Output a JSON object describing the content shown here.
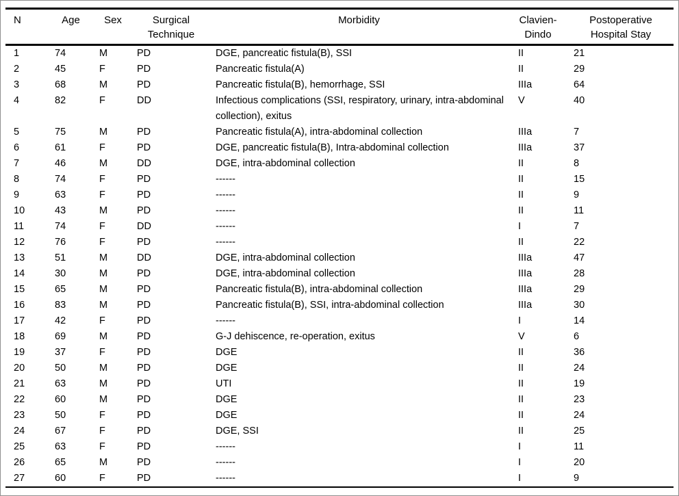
{
  "table": {
    "columns": [
      {
        "label": "N"
      },
      {
        "label": "Age"
      },
      {
        "label": "Sex"
      },
      {
        "label": "Surgical Technique"
      },
      {
        "label": "Morbidity"
      },
      {
        "label": "Clavien-Dindo"
      },
      {
        "label": "Postoperative Hospital Stay"
      }
    ],
    "rows": [
      [
        "1",
        "74",
        "M",
        "PD",
        "DGE, pancreatic fistula(B), SSI",
        "II",
        "21"
      ],
      [
        "2",
        "45",
        "F",
        "PD",
        "Pancreatic fistula(A)",
        "II",
        "29"
      ],
      [
        "3",
        "68",
        "M",
        "PD",
        "Pancreatic fistula(B), hemorrhage, SSI",
        "IIIa",
        "64"
      ],
      [
        "4",
        "82",
        "F",
        "DD",
        "Infectious complications (SSI, respiratory, urinary, intra-abdominal collection), exitus",
        "V",
        "40"
      ],
      [
        "5",
        "75",
        "M",
        "PD",
        "Pancreatic fistula(A), intra-abdominal collection",
        "IIIa",
        "7"
      ],
      [
        "6",
        "61",
        "F",
        "PD",
        "DGE, pancreatic fistula(B), Intra-abdominal collection",
        "IIIa",
        "37"
      ],
      [
        "7",
        "46",
        "M",
        "DD",
        "DGE, intra-abdominal collection",
        "II",
        "8"
      ],
      [
        "8",
        "74",
        "F",
        "PD",
        "------",
        "II",
        "15"
      ],
      [
        "9",
        "63",
        "F",
        "PD",
        "------",
        "II",
        "9"
      ],
      [
        "10",
        "43",
        "M",
        "PD",
        "------",
        "II",
        "11"
      ],
      [
        "11",
        "74",
        "F",
        "DD",
        "------",
        "I",
        "7"
      ],
      [
        "12",
        "76",
        "F",
        "PD",
        "------",
        "II",
        "22"
      ],
      [
        "13",
        "51",
        "M",
        "DD",
        "DGE, intra-abdominal collection",
        "IIIa",
        "47"
      ],
      [
        "14",
        "30",
        "M",
        "PD",
        "DGE, intra-abdominal collection",
        "IIIa",
        "28"
      ],
      [
        "15",
        "65",
        "M",
        "PD",
        "Pancreatic fistula(B), intra-abdominal collection",
        "IIIa",
        "29"
      ],
      [
        "16",
        "83",
        "M",
        "PD",
        "Pancreatic fistula(B), SSI, intra-abdominal collection",
        "IIIa",
        "30"
      ],
      [
        "17",
        "42",
        "F",
        "PD",
        "------",
        "I",
        "14"
      ],
      [
        "18",
        "69",
        "M",
        "PD",
        "G-J dehiscence, re-operation, exitus",
        "V",
        "6"
      ],
      [
        "19",
        "37",
        "F",
        "PD",
        "DGE",
        "II",
        "36"
      ],
      [
        "20",
        "50",
        "M",
        "PD",
        "DGE",
        "II",
        "24"
      ],
      [
        "21",
        "63",
        "M",
        "PD",
        "UTI",
        "II",
        "19"
      ],
      [
        "22",
        "60",
        "M",
        "PD",
        "DGE",
        "II",
        "23"
      ],
      [
        "23",
        "50",
        "F",
        "PD",
        "DGE",
        "II",
        "24"
      ],
      [
        "24",
        "67",
        "F",
        "PD",
        "DGE, SSI",
        "II",
        "25"
      ],
      [
        "25",
        "63",
        "F",
        "PD",
        "------",
        "I",
        "11"
      ],
      [
        "26",
        "65",
        "M",
        "PD",
        "------",
        "I",
        "20"
      ],
      [
        "27",
        "60",
        "F",
        "PD",
        "------",
        "I",
        "9"
      ]
    ]
  }
}
